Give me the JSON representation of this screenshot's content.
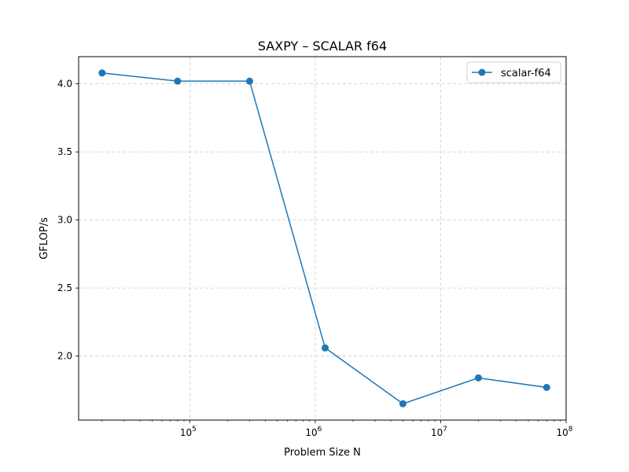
{
  "chart_data": {
    "type": "line",
    "title": "SAXPY – SCALAR f64",
    "xlabel": "Problem Size N",
    "ylabel": "GFLOP/s",
    "xscale": "log",
    "xlim": [
      13000,
      100000000
    ],
    "ylim": [
      1.53,
      4.2
    ],
    "grid": true,
    "grid_style": "dashed",
    "legend_placement": "top-right",
    "x_ticks": [
      {
        "value": 100000,
        "base": "10",
        "exp": "5"
      },
      {
        "value": 1000000,
        "base": "10",
        "exp": "6"
      },
      {
        "value": 10000000,
        "base": "10",
        "exp": "7"
      },
      {
        "value": 100000000,
        "base": "10",
        "exp": "8"
      }
    ],
    "y_ticks": [
      {
        "value": 2.0,
        "label": "2.0"
      },
      {
        "value": 2.5,
        "label": "2.5"
      },
      {
        "value": 3.0,
        "label": "3.0"
      },
      {
        "value": 3.5,
        "label": "3.5"
      },
      {
        "value": 4.0,
        "label": "4.0"
      }
    ],
    "series": [
      {
        "name": "scalar-f64",
        "color": "#1f77b4",
        "marker": "circle",
        "x": [
          20000,
          80000,
          300000,
          1200000,
          5000000,
          20000000,
          70000000
        ],
        "y": [
          4.08,
          4.02,
          4.02,
          2.06,
          1.65,
          1.84,
          1.77
        ]
      }
    ]
  }
}
